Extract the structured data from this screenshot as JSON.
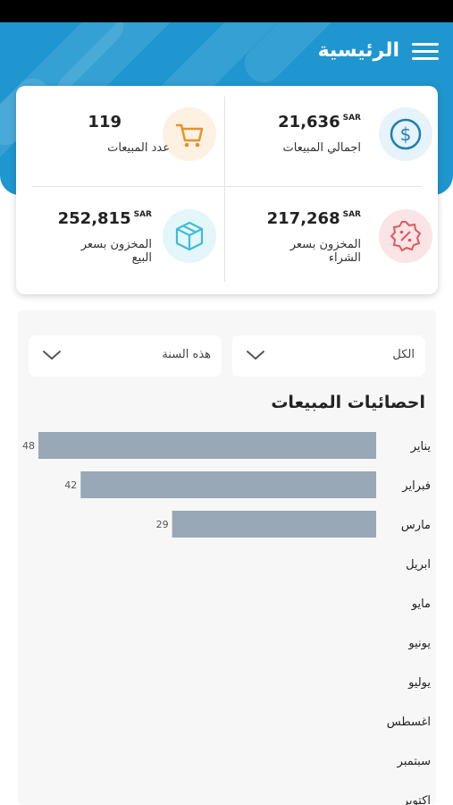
{
  "header": {
    "title": "الرئيسية"
  },
  "stats": {
    "total_sales": {
      "value": "21,636",
      "currency": "SAR",
      "label": "اجمالي المبيعات"
    },
    "sales_count": {
      "value": "119",
      "label": "عدد المبيعات"
    },
    "stock_purchase": {
      "value": "217,268",
      "currency": "SAR",
      "label": "المخزون بسعر الشراء"
    },
    "stock_sale": {
      "value": "252,815",
      "currency": "SAR",
      "label": "المخزون بسعر البيع"
    }
  },
  "filters": {
    "category": {
      "selected": "الكل"
    },
    "period": {
      "selected": "هذه السنة"
    }
  },
  "chart_title": "احصائيات المبيعات",
  "colors": {
    "header": "#1f96cf",
    "bar": "#98a8b6",
    "dollar_icon": "#1e7fb3",
    "cart_icon": "#e8922a",
    "discount_icon": "#e0585e",
    "box_icon": "#3fbcd8"
  },
  "icons": {
    "menu": "menu-icon",
    "total_sales": "dollar-icon",
    "sales_count": "cart-icon",
    "stock_purchase": "discount-badge-icon",
    "stock_sale": "box-icon",
    "dropdown": "chevron-down-icon"
  },
  "chart_data": {
    "type": "bar",
    "orientation": "horizontal",
    "title": "احصائيات المبيعات",
    "categories": [
      "يناير",
      "فبراير",
      "مارس",
      "ابريل",
      "مايو",
      "يونيو",
      "يوليو",
      "اغسطس",
      "سبتمبر",
      "اكتوبر"
    ],
    "values": [
      48,
      42,
      29,
      0,
      0,
      0,
      0,
      0,
      0,
      0
    ],
    "xlim": [
      0,
      48
    ],
    "grid": false,
    "legend": "none"
  }
}
